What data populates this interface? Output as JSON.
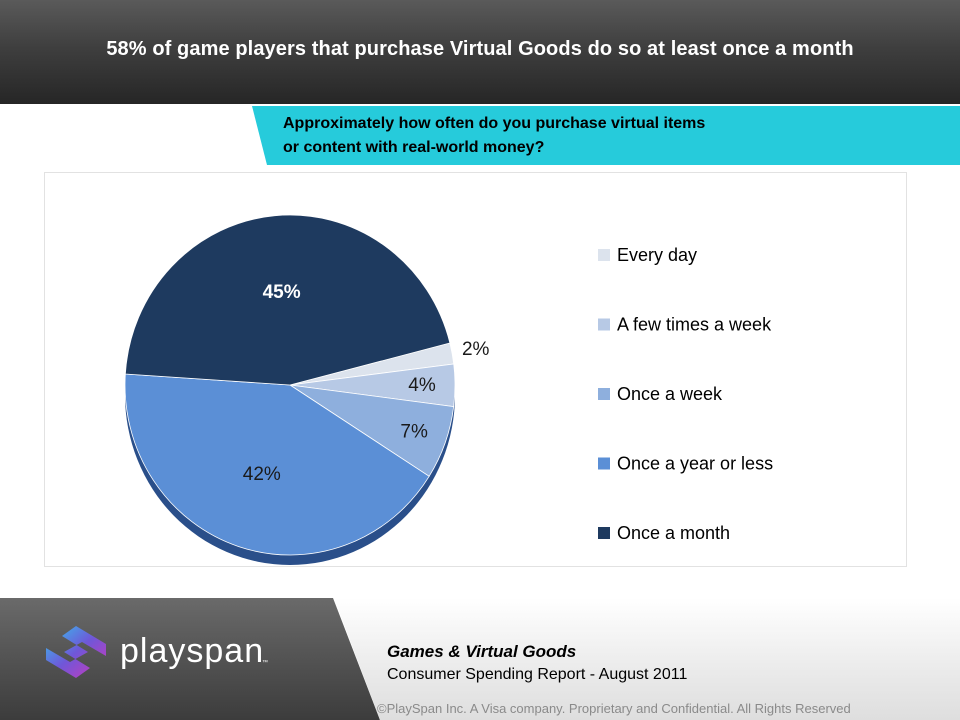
{
  "header": {
    "title": "58% of game players that purchase Virtual Goods do so at least once a month"
  },
  "question": {
    "line1": "Approximately how often do you purchase virtual items",
    "line2": "or content with real-world money?"
  },
  "chart_data": {
    "type": "pie",
    "title": "Approximately how often do you purchase virtual items or content with real-world money?",
    "categories": [
      "Every day",
      "A few times a week",
      "Once a week",
      "Once a year or less",
      "Once a month"
    ],
    "values": [
      2,
      4,
      7,
      42,
      45
    ],
    "labels": [
      "2%",
      "4%",
      "7%",
      "42%",
      "45%"
    ],
    "colors": [
      "#dce3ed",
      "#b7c9e5",
      "#8eafdd",
      "#5b8fd6",
      "#1e3a5f"
    ],
    "legend_position": "right",
    "start_angle_deg": -14.3
  },
  "footer": {
    "brand": "playspan",
    "tm": "™",
    "report_title": "Games & Virtual Goods",
    "report_subtitle": "Consumer Spending Report  - August 2011",
    "copyright": "©PlaySpan Inc. A Visa company. Proprietary and Confidential. All Rights Reserved"
  }
}
